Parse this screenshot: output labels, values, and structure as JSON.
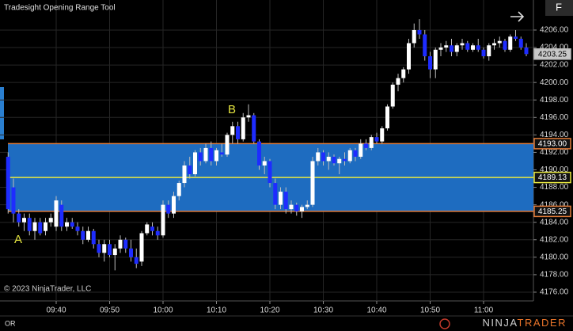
{
  "chart_data": {
    "type": "candlestick",
    "title": "Tradesight Opening Range Tool",
    "copyright": "© 2023 NinjaTrader, LLC",
    "annotations": [
      "A",
      "B"
    ],
    "button": "F",
    "footer": {
      "tab": "OR",
      "logo_a": "NINJA",
      "logo_b": "TRADER"
    },
    "categories": [
      null,
      null,
      null,
      null,
      null,
      null,
      null,
      null,
      null,
      "09:40",
      null,
      null,
      null,
      null,
      null,
      null,
      null,
      null,
      null,
      "09:50",
      null,
      null,
      null,
      null,
      null,
      null,
      null,
      null,
      null,
      "10:00",
      null,
      null,
      null,
      null,
      null,
      null,
      null,
      null,
      null,
      "10:10",
      null,
      null,
      null,
      null,
      null,
      null,
      null,
      null,
      null,
      "10:20",
      null,
      null,
      null,
      null,
      null,
      null,
      null,
      null,
      null,
      "10:30",
      null,
      null,
      null,
      null,
      null,
      null,
      null,
      null,
      null,
      "10:40",
      null,
      null,
      null,
      null,
      null,
      null,
      null,
      null,
      null,
      "10:50",
      null,
      null,
      null,
      null,
      null,
      null,
      null,
      null,
      null,
      "11:00",
      null,
      null,
      null,
      null,
      null,
      null,
      null,
      null
    ],
    "open": [
      4191.5,
      4188,
      4185,
      4184,
      4184.5,
      4183,
      4184,
      4183,
      4184,
      4183.5,
      4186,
      4183.5,
      4184,
      4183.5,
      4183,
      4182,
      4183,
      4181.5,
      4180.5,
      4181.5,
      4180.25,
      4181,
      4182,
      4181,
      4180,
      4179.5,
      4182.75,
      4183.5,
      4183,
      4182.5,
      4186,
      4185,
      4187,
      4188.5,
      4190.5,
      4189.5,
      4192,
      4191,
      4192.5,
      4191,
      4192,
      4191.75,
      4194,
      4195,
      4193.5,
      4196,
      4196.25,
      4193.25,
      4190.5,
      4191,
      4188.5,
      4186,
      4187.5,
      4185.5,
      4186,
      4185.25,
      4185.75,
      4186,
      4191,
      4192,
      4191,
      4191.5,
      4190.75,
      4191.25,
      4191,
      4192.25,
      4191.5,
      4193,
      4192.5,
      4193.75,
      4193.25,
      4194.75,
      4197.25,
      4199.75,
      4200.5,
      4201.5,
      4204.5,
      4206,
      4205.5,
      4203,
      4201.5,
      4203.75,
      4204,
      4204.25,
      4203.5,
      4204.25,
      4204.5,
      4203.75,
      4204.25,
      4203.75,
      4203,
      4204.25,
      4204.5,
      4204.75,
      4203.75,
      4205.25,
      4205,
      4204
    ],
    "high": [
      4192,
      4189,
      4185.5,
      4185,
      4185,
      4184.5,
      4184.5,
      4184.5,
      4185,
      4187,
      4186.5,
      4184.5,
      4184.5,
      4184,
      4183.5,
      4183.5,
      4183.25,
      4182,
      4182,
      4182,
      4181.5,
      4182.5,
      4182.25,
      4182,
      4181,
      4183,
      4184,
      4184,
      4183.5,
      4186.5,
      4186.5,
      4187.5,
      4188.75,
      4191,
      4191.5,
      4192.25,
      4192.5,
      4193,
      4193.25,
      4192.5,
      4193,
      4194.25,
      4195.5,
      4195.5,
      4196.5,
      4197.5,
      4196.5,
      4193.5,
      4191.5,
      4191.25,
      4189,
      4188,
      4188,
      4186.5,
      4186.25,
      4186,
      4186.5,
      4191.5,
      4192.5,
      4192.25,
      4192,
      4191.75,
      4191.5,
      4192,
      4192.5,
      4192.5,
      4193.5,
      4193.5,
      4194,
      4194.25,
      4195,
      4197.5,
      4200,
      4201,
      4201.75,
      4205,
      4206.75,
      4207.25,
      4206,
      4203.5,
      4204,
      4204.5,
      4204.75,
      4205,
      4204.5,
      4205,
      4204.75,
      4204.5,
      4205,
      4204,
      4204.5,
      4205,
      4205.25,
      4205,
      4205.5,
      4206,
      4205.25,
      4204.5
    ],
    "low": [
      4185,
      4184,
      4183.5,
      4183,
      4182.5,
      4182,
      4182.5,
      4182.5,
      4183.5,
      4183,
      4183,
      4183,
      4183.25,
      4182.5,
      4181.5,
      4181.75,
      4181,
      4180,
      4179.5,
      4180,
      4178.5,
      4180.5,
      4180.5,
      4179.5,
      4178.75,
      4179,
      4182.5,
      4182.5,
      4182,
      4182.25,
      4184.5,
      4184.5,
      4186.5,
      4188,
      4189,
      4189.25,
      4190.5,
      4190.75,
      4190.5,
      4190.5,
      4191.5,
      4191.5,
      4193,
      4193,
      4193.25,
      4195.5,
      4193,
      4190,
      4189.5,
      4188,
      4185.5,
      4185.5,
      4185,
      4185,
      4184.75,
      4184.5,
      4185.5,
      4185.75,
      4190.5,
      4190.5,
      4190,
      4190.5,
      4189.5,
      4190.5,
      4190.75,
      4191,
      4191.25,
      4192.25,
      4192.25,
      4193,
      4193,
      4194.5,
      4197,
      4199,
      4200,
      4201,
      4204,
      4205,
      4202.5,
      4200.5,
      4200.5,
      4203,
      4203.5,
      4203,
      4203,
      4203.75,
      4203.5,
      4203.5,
      4203.5,
      4202.75,
      4202.5,
      4203.75,
      4204,
      4203.5,
      4203.5,
      4204.75,
      4203.75,
      4203
    ],
    "close": [
      4185.5,
      4185,
      4184,
      4184.5,
      4183,
      4184,
      4182.75,
      4184,
      4184.5,
      4186.5,
      4183.5,
      4184,
      4183.5,
      4183,
      4182,
      4183,
      4181.5,
      4180.5,
      4181.5,
      4180.25,
      4181,
      4182,
      4181,
      4180,
      4179.25,
      4182.75,
      4183.75,
      4183,
      4182.5,
      4186,
      4185,
      4187,
      4188.5,
      4190.5,
      4189.5,
      4192,
      4191,
      4192.5,
      4191,
      4192.25,
      4191.75,
      4194,
      4195,
      4193.5,
      4196,
      4196.25,
      4193.25,
      4190.5,
      4191,
      4188.5,
      4186,
      4187.5,
      4185.5,
      4186,
      4185.25,
      4185.75,
      4186,
      4191,
      4192,
      4191,
      4191.5,
      4190.75,
      4191.25,
      4191,
      4192.25,
      4191.5,
      4193,
      4192.5,
      4193.75,
      4193.25,
      4194.75,
      4197.25,
      4199.75,
      4200.5,
      4201.5,
      4204.5,
      4206,
      4205.5,
      4203,
      4201.5,
      4203.75,
      4204,
      4204.25,
      4203.5,
      4204.25,
      4204.5,
      4203.75,
      4204.25,
      4203.75,
      4203,
      4204.25,
      4204.5,
      4204.75,
      4203.75,
      4205.25,
      4205,
      4204,
      4203.25
    ],
    "up_color": "#ffffff",
    "down_color": "#1e2cff",
    "wick_color": "#bdbdbd",
    "ylim": [
      4175,
      4209.44
    ],
    "yticks": [
      {
        "value": 4176,
        "label": "4176.00"
      },
      {
        "value": 4178,
        "label": "4178.00"
      },
      {
        "value": 4180,
        "label": "4180.00"
      },
      {
        "value": 4182,
        "label": "4182.00"
      },
      {
        "value": 4184,
        "label": "4184.00"
      },
      {
        "value": 4186,
        "label": "4186.00"
      },
      {
        "value": 4188,
        "label": "4188.00"
      },
      {
        "value": 4190,
        "label": "4190.00"
      },
      {
        "value": 4192,
        "label": "4192.00"
      },
      {
        "value": 4194,
        "label": "4194.00"
      },
      {
        "value": 4196,
        "label": "4196.00"
      },
      {
        "value": 4198,
        "label": "4198.00"
      },
      {
        "value": 4200,
        "label": "4200.00"
      },
      {
        "value": 4202,
        "label": "4202.00"
      },
      {
        "value": 4204,
        "label": "4204.00"
      },
      {
        "value": 4206,
        "label": "4206.00"
      }
    ],
    "grid": true,
    "range": {
      "high": {
        "value": 4193,
        "label": "4193.00"
      },
      "mid": {
        "value": 4189.13,
        "label": "4189.13"
      },
      "low": {
        "value": 4185.25,
        "label": "4185.25"
      },
      "fill": "#1e6cc0",
      "edge_color": "#e07b39",
      "mid_color": "#e8e840"
    },
    "last_price": {
      "value": 4203.25,
      "label": "4203.25"
    }
  }
}
